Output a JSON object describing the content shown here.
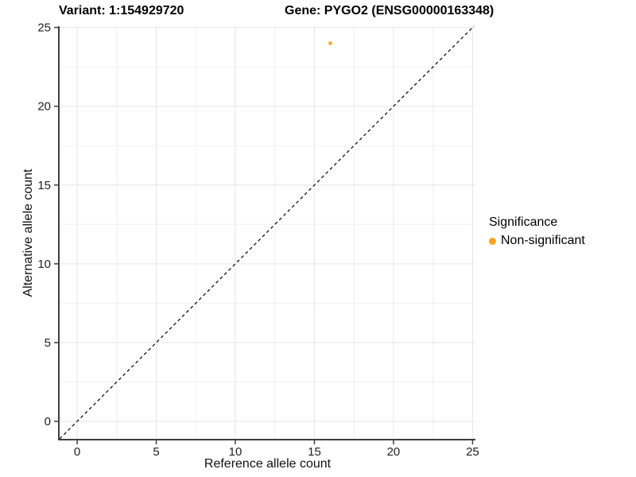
{
  "colors": {
    "background": "#ffffff",
    "accent_orange": "#FFA41B",
    "grid_major": "#e6e6e6",
    "grid_minor": "#f0f0f0",
    "axis_line": "#3f3f3f",
    "tick_text": "#212121",
    "reference_line": "#111111"
  },
  "chart_data": {
    "type": "scatter",
    "titles": [
      "Variant: 1:154929720",
      "Gene: PYGO2 (ENSG00000163348)"
    ],
    "xlabel": "Reference allele count",
    "ylabel": "Alternative allele count",
    "x_ticks": [
      0,
      5,
      10,
      15,
      20,
      25
    ],
    "y_ticks": [
      0,
      5,
      10,
      15,
      20,
      25
    ],
    "minor_grid": true,
    "xlim": [
      -1.11,
      25.18
    ],
    "ylim": [
      -1.16,
      25.08
    ],
    "grid": true,
    "legend": {
      "title": "Significance",
      "position": "right",
      "items": [
        {
          "label": "Non-significant",
          "color": "#FFA41B"
        }
      ]
    },
    "series": [
      {
        "name": "Non-significant",
        "color": "#FFA41B",
        "point_radius": 2.3,
        "points": [
          [
            16,
            24
          ]
        ]
      }
    ],
    "reference_line": {
      "slope": 1,
      "intercept": 0,
      "style": "dashed",
      "color": "#111111"
    }
  }
}
